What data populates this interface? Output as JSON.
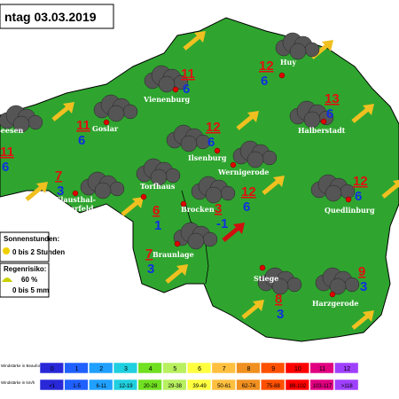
{
  "header": {
    "title": "ntag 03.03.2019"
  },
  "cities": [
    {
      "name": "Seesen",
      "max": 11,
      "min": 6
    },
    {
      "name": "Goslar",
      "max": 11,
      "min": 6
    },
    {
      "name": "Vienenburg",
      "max": 11,
      "min": 6
    },
    {
      "name": "Huy",
      "max": 12,
      "min": 6
    },
    {
      "name": "Halberstadt",
      "max": 13,
      "min": 6
    },
    {
      "name": "Ilsenburg",
      "max": 12,
      "min": 6
    },
    {
      "name": "Wernigerode",
      "max": 12,
      "min": 6
    },
    {
      "name": "Clausthal-\nZellerfeld",
      "max": 7,
      "min": 3
    },
    {
      "name": "Torfhaus",
      "max": 6,
      "min": 1
    },
    {
      "name": "Brocken",
      "max": 3,
      "min": -1
    },
    {
      "name": "Quedlinburg",
      "max": 12,
      "min": 6
    },
    {
      "name": "Braunlage",
      "max": 7,
      "min": 3
    },
    {
      "name": "Stiege",
      "max": 8,
      "min": 3
    },
    {
      "name": "Harzgerode",
      "max": 9,
      "min": 3
    }
  ],
  "info": {
    "sun_title": "Sonnenstunden:",
    "sun_value": "0 bis 2 Stunden",
    "rain_title": "Regenrisiko:",
    "rain_percent": "60 %",
    "rain_amount": "0 bis 5 mm"
  },
  "wind_scale": {
    "beaufort_label": "Windstärke in Beaufort",
    "kmh_label": "Windstärke in km/h",
    "beaufort": [
      0,
      1,
      2,
      3,
      4,
      5,
      6,
      7,
      8,
      9,
      10,
      11,
      12
    ],
    "kmh": [
      "<1",
      "1-5",
      "6-11",
      "12-19",
      "20-28",
      "29-38",
      "39-49",
      "50-61",
      "62-74",
      "75-88",
      "89-102",
      "103-117",
      ">118"
    ],
    "colors": [
      "#2828d8",
      "#2060ff",
      "#20a0ff",
      "#20d0e0",
      "#70e020",
      "#b8f060",
      "#ffff40",
      "#ffc040",
      "#f09020",
      "#ff5000",
      "#ff0000",
      "#e00080",
      "#a040ff"
    ]
  }
}
